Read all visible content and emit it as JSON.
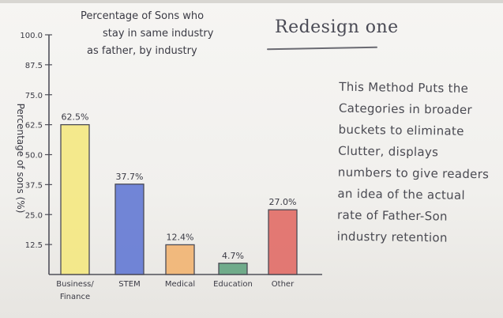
{
  "heading": "Redesign one",
  "description": "This Method Puts the Categories in broader buckets to eliminate Clutter, displays numbers to give readers an idea of the actual rate of Father-Son industry retention",
  "chart_data": {
    "type": "bar",
    "title": "Percentage of Sons who stay in same industry as father, by industry",
    "ylabel": "Percentage of sons (%)",
    "ylim": [
      0,
      100
    ],
    "yticks": [
      "100.0",
      "87.5",
      "75.0",
      "62.5",
      "50.0",
      "37.5",
      "25.0",
      "12.5"
    ],
    "categories": [
      "Business/ Finance",
      "STEM",
      "Medical",
      "Education",
      "Other"
    ],
    "values": [
      62.5,
      37.7,
      12.4,
      4.7,
      27.0
    ],
    "data_labels": [
      "62.5%",
      "37.7%",
      "12.4%",
      "4.7%",
      "27.0%"
    ],
    "colors": [
      "#f4e77a",
      "#5a72d2",
      "#f2b06a",
      "#5aa07a",
      "#e0645e"
    ]
  }
}
